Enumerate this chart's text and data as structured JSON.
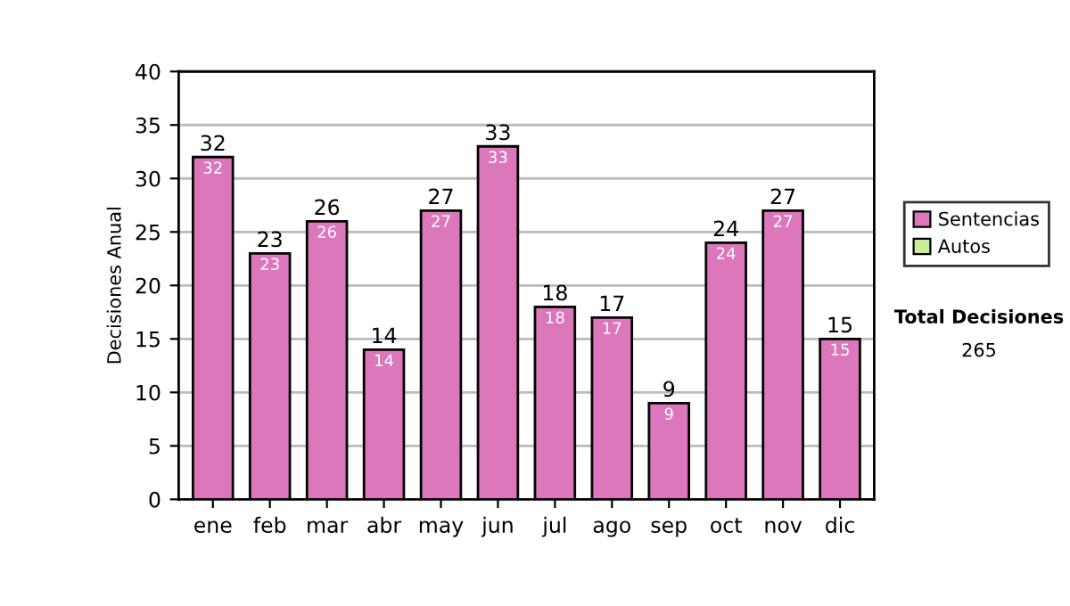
{
  "chart_data": {
    "type": "bar",
    "stacked": true,
    "ylabel": "Decisiones Anual",
    "categories": [
      "ene",
      "feb",
      "mar",
      "abr",
      "may",
      "jun",
      "jul",
      "ago",
      "sep",
      "oct",
      "nov",
      "dic"
    ],
    "series": [
      {
        "name": "Sentencias",
        "color": "#dd77bb",
        "values": [
          32,
          23,
          26,
          14,
          27,
          33,
          18,
          17,
          9,
          24,
          27,
          15
        ],
        "value_labels": [
          "32",
          "23",
          "26",
          "14",
          "27",
          "33",
          "18",
          "17",
          "9",
          "24",
          "27",
          "15"
        ]
      },
      {
        "name": "Autos",
        "color": "#ccee99",
        "values": [
          0,
          0,
          0,
          0,
          0,
          0,
          0,
          0,
          0,
          0,
          0,
          0
        ]
      }
    ],
    "totals": [
      "32",
      "23",
      "26",
      "14",
      "27",
      "33",
      "18",
      "17",
      "9",
      "24",
      "27",
      "15"
    ],
    "ylim": [
      0,
      40
    ],
    "yticks": [
      0,
      5,
      10,
      15,
      20,
      25,
      30,
      35,
      40
    ],
    "grid": "y",
    "legend": "right",
    "annotations": [
      "Total Decisiones",
      "265"
    ]
  }
}
